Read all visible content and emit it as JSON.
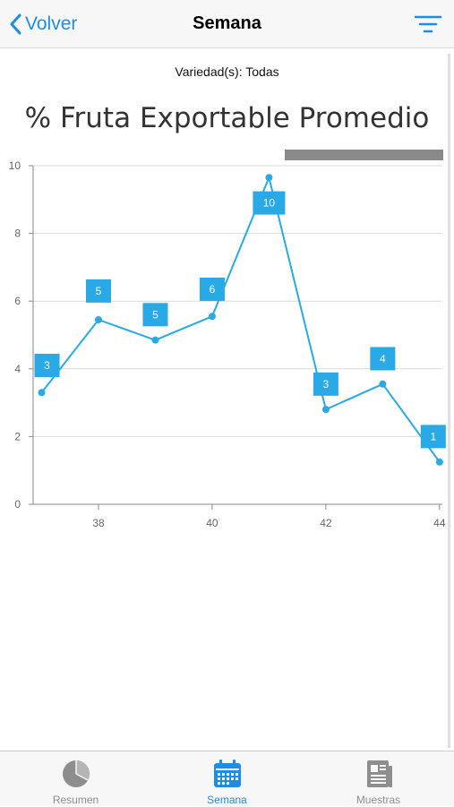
{
  "nav": {
    "back_label": "Volver",
    "title": "Semana"
  },
  "subtitle": "Variedad(s): Todas",
  "chart_title": "% Fruta Exportable Promedio",
  "chart_data": {
    "type": "line",
    "title": "% Fruta Exportable Promedio",
    "x": [
      37,
      38,
      39,
      40,
      41,
      42,
      43,
      44
    ],
    "y": [
      3.3,
      5.45,
      4.85,
      5.55,
      9.65,
      2.8,
      3.55,
      1.25
    ],
    "labels": [
      "3",
      "5",
      "5",
      "6",
      "10",
      "3",
      "4",
      "1"
    ],
    "label_y": [
      4.1,
      6.3,
      5.6,
      6.35,
      8.9,
      3.55,
      4.3,
      2.0
    ],
    "xlim": [
      36.85,
      44.05
    ],
    "ylim": [
      0,
      10
    ],
    "x_ticks": [
      38,
      40,
      42,
      44
    ],
    "y_ticks": [
      0,
      2,
      4,
      6,
      8,
      10
    ],
    "grid": true,
    "line_color": "#29a9e6"
  },
  "tabs": [
    {
      "label": "Resumen",
      "icon": "pie-chart-icon",
      "active": false
    },
    {
      "label": "Semana",
      "icon": "calendar-icon",
      "active": true
    },
    {
      "label": "Muestras",
      "icon": "newspaper-icon",
      "active": false
    }
  ],
  "colors": {
    "accent": "#1e8de6",
    "series": "#29a9e6",
    "label_box": "#29a9e6"
  }
}
